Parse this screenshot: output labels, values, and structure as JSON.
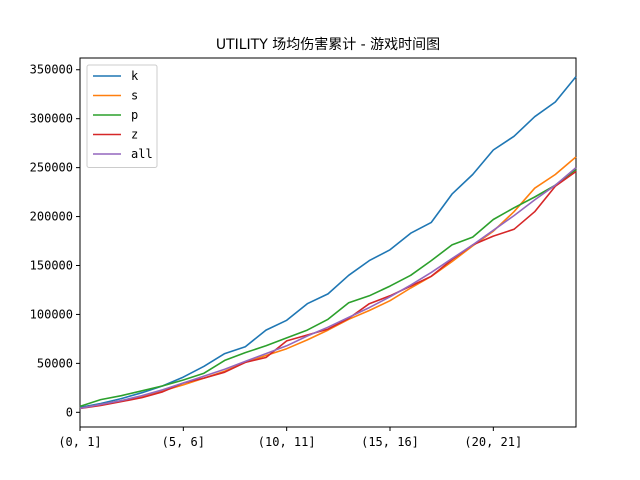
{
  "chart_data": {
    "type": "line",
    "title": "UTILITY 场均伤害累计 - 游戏时间图",
    "xlabel": "",
    "ylabel": "",
    "x_tick_labels": [
      "(0, 1]",
      "(5, 6]",
      "(10, 11]",
      "(15, 16]",
      "(20, 21]"
    ],
    "x_tick_index": [
      0,
      5,
      10,
      15,
      20
    ],
    "x_count": 25,
    "y_ticks": [
      0,
      50000,
      100000,
      150000,
      200000,
      250000,
      300000,
      350000
    ],
    "ylim": [
      -15000,
      362000
    ],
    "grid": false,
    "legend_position": "top-left",
    "series": [
      {
        "name": "k",
        "color": "#1f77b4",
        "values": [
          5000,
          9000,
          14000,
          20000,
          27000,
          36000,
          47000,
          60000,
          67000,
          84000,
          94000,
          111000,
          121000,
          140000,
          155000,
          166000,
          183000,
          194000,
          223000,
          243000,
          268000,
          282000,
          302000,
          317000,
          343000
        ]
      },
      {
        "name": "s",
        "color": "#ff7f0e",
        "values": [
          4000,
          8000,
          12000,
          16000,
          22000,
          28000,
          35000,
          42000,
          51000,
          58000,
          65000,
          74000,
          84000,
          95000,
          104000,
          114000,
          127000,
          139000,
          154000,
          170000,
          185000,
          205000,
          229000,
          243000,
          261000
        ]
      },
      {
        "name": "p",
        "color": "#2ca02c",
        "values": [
          6000,
          13000,
          17000,
          22000,
          27000,
          33000,
          40000,
          53000,
          61000,
          68000,
          76000,
          84000,
          95000,
          112000,
          119000,
          129000,
          140000,
          155000,
          171000,
          179000,
          197000,
          209000,
          220000,
          232000,
          248000
        ]
      },
      {
        "name": "z",
        "color": "#d62728",
        "values": [
          4000,
          7000,
          11000,
          15000,
          21000,
          30000,
          35000,
          41000,
          51000,
          56000,
          73000,
          79000,
          85000,
          96000,
          111000,
          119000,
          129000,
          139000,
          156000,
          171000,
          180000,
          187000,
          205000,
          231000,
          246000
        ]
      },
      {
        "name": "all",
        "color": "#9467bd",
        "values": [
          4000,
          8000,
          12000,
          17000,
          23000,
          30000,
          37000,
          44000,
          52000,
          60000,
          68000,
          78000,
          87000,
          97000,
          107000,
          118000,
          130000,
          143000,
          157000,
          171000,
          186000,
          201000,
          217000,
          232000,
          250000
        ]
      }
    ]
  }
}
